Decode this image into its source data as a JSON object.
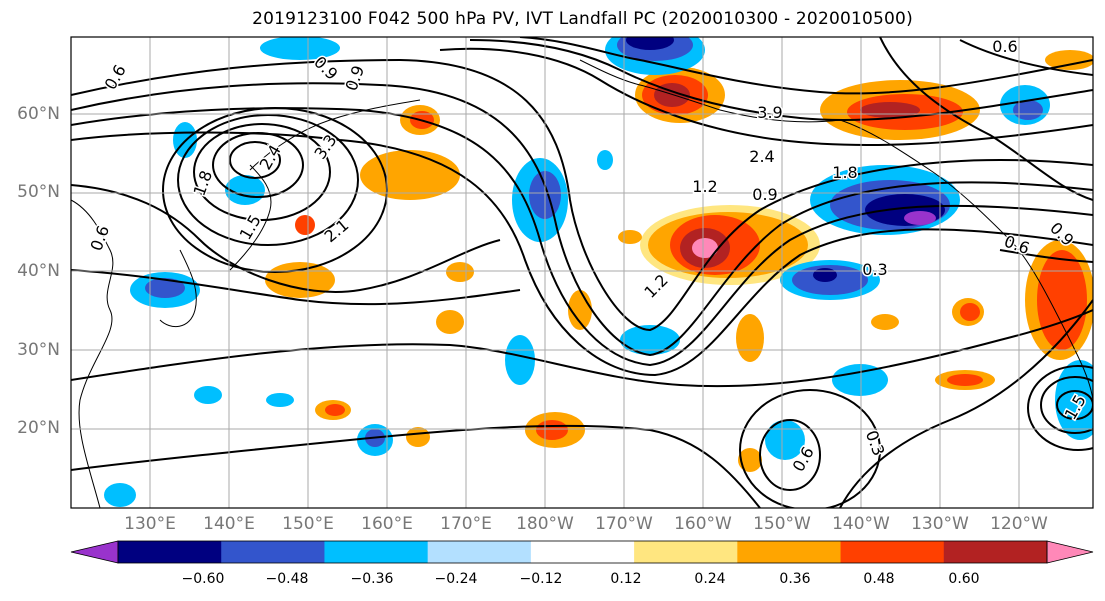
{
  "title": "2019123100 F042 500 hPa PV, IVT Landfall PC (2020010300 - 2020010500)",
  "map": {
    "lat_labels": [
      "60°N",
      "50°N",
      "40°N",
      "30°N",
      "20°N"
    ],
    "lon_labels": [
      "130°E",
      "140°E",
      "150°E",
      "160°E",
      "170°E",
      "180°W",
      "170°W",
      "160°W",
      "150°W",
      "140°W",
      "130°W",
      "120°W"
    ],
    "grid_lines": true,
    "contour_labels": [
      "0.6",
      "0.9",
      "3.3",
      "2.4",
      "1.8",
      "1.5",
      "2.1",
      "0.6",
      "0.3",
      "1.2",
      "0.9",
      "1.8",
      "2.4",
      "3.9",
      "0.6",
      "1.2",
      "0.9",
      "0.6",
      "0.3",
      "0.6",
      "0.9",
      "1.5"
    ]
  },
  "colorbar": {
    "ticks": [
      "−0.60",
      "−0.48",
      "−0.36",
      "−0.24",
      "−0.12",
      "0.12",
      "0.24",
      "0.36",
      "0.48",
      "0.60"
    ],
    "colors": [
      "#9933cc",
      "#000080",
      "#3355cc",
      "#00bfff",
      "#b3e0ff",
      "#ffffff",
      "#ffe680",
      "#ffa500",
      "#ff4000",
      "#b22222",
      "#ff88b8"
    ]
  }
}
